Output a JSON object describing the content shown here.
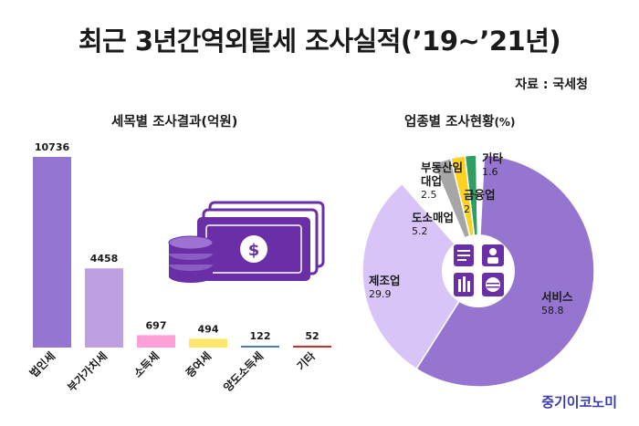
{
  "title": "최근 3년간역외탈세 조사실적(’19~’21년)",
  "source": "자료 : 국세청",
  "brand": "중기이코노미",
  "chart_data": [
    {
      "type": "bar",
      "title": "세목별 조사결과(억원)",
      "categories": [
        "법인세",
        "부가가치세",
        "소득세",
        "증여세",
        "양도소득세",
        "기타"
      ],
      "values": [
        10736,
        4458,
        697,
        494,
        122,
        52
      ],
      "colors": [
        "#9475d1",
        "#bb9fe0",
        "#ff9fd9",
        "#ffe66a",
        "#4a78c4",
        "#d42a2a"
      ]
    },
    {
      "type": "pie",
      "title": "업종별 조사현황",
      "unit": "(%)",
      "slices": [
        {
          "label": "서비스",
          "value": 58.8,
          "color": "#9575d0"
        },
        {
          "label": "제조업",
          "value": 29.9,
          "color": "#d8c4f6"
        },
        {
          "label": "도소매업",
          "value": 5.2,
          "color": "#ffffff"
        },
        {
          "label": "부동산임대업",
          "value": 2.5,
          "color": "#a6a6a6"
        },
        {
          "label": "금융업",
          "value": 2,
          "color": "#ffd21f"
        },
        {
          "label": "기타",
          "value": 1.6,
          "color": "#2e9e63"
        }
      ],
      "extra_color": "#c9dbf2"
    }
  ]
}
